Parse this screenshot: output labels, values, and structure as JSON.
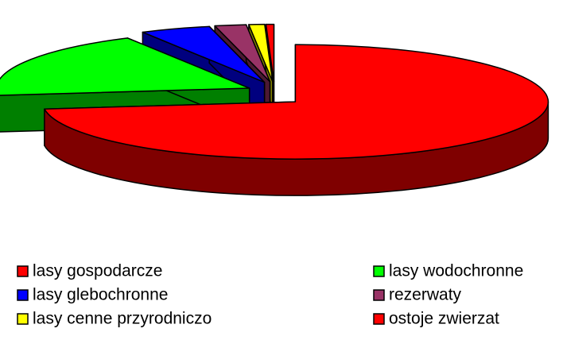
{
  "chart_data": {
    "type": "pie3d",
    "categories": [
      "lasy gospodarcze",
      "lasy wodochronne",
      "lasy glebochronne",
      "rezerwaty",
      "lasy cenne przyrodniczo",
      "ostoje zwierzat"
    ],
    "values": [
      73,
      19,
      4.5,
      2,
      1,
      0.5
    ],
    "colors": [
      "#ff0000",
      "#00ff00",
      "#0000ff",
      "#993366",
      "#ffff00",
      "#ff0000"
    ],
    "legend": "bottom"
  }
}
